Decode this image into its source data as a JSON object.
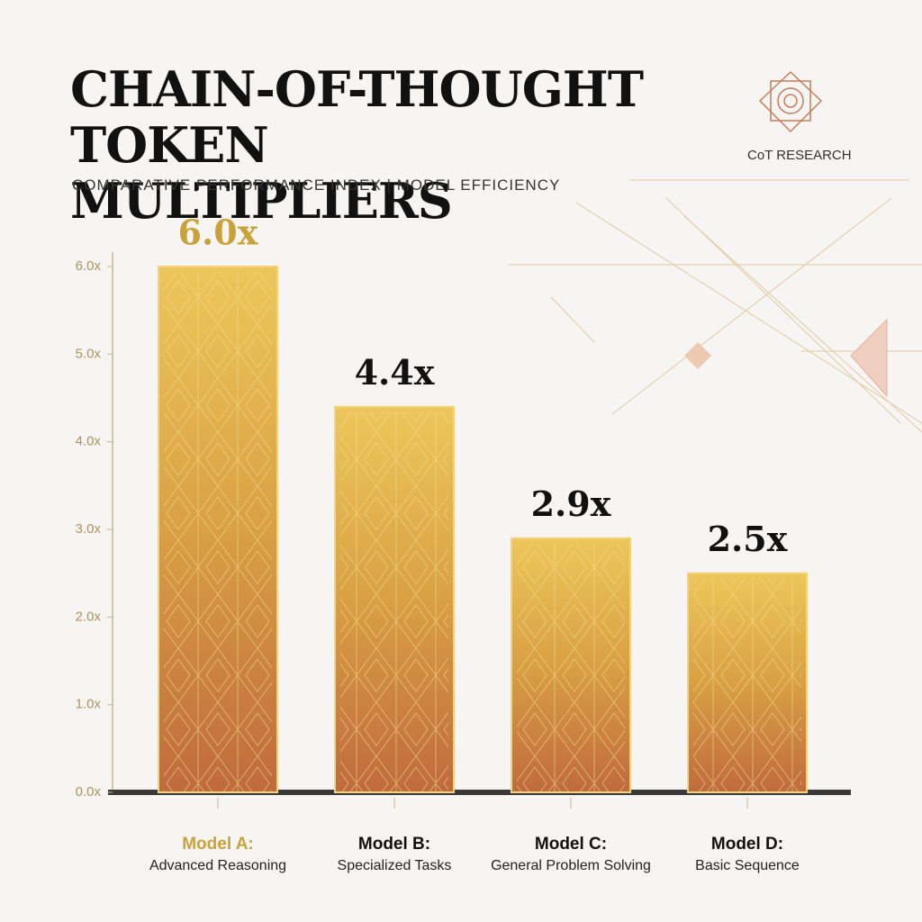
{
  "chart_data": {
    "type": "bar",
    "title": "CHAIN-OF-THOUGHT TOKEN MULTIPLIERS",
    "subtitle": "COMPARATIVE PERFORMANCE INDEX | MODEL EFFICIENCY",
    "brand": "CoT RESEARCH",
    "categories": [
      "Model A:",
      "Model B:",
      "Model C:",
      "Model D:"
    ],
    "category_descriptions": [
      "Advanced Reasoning",
      "Specialized Tasks",
      "General Problem Solving",
      "Basic Sequence"
    ],
    "values": [
      6.0,
      4.4,
      2.9,
      2.5
    ],
    "value_labels": [
      "6.0x",
      "4.4x",
      "2.9x",
      "2.5x"
    ],
    "ylim": [
      0,
      6
    ],
    "yticks": [
      {
        "value": 0,
        "label": "0.0x"
      },
      {
        "value": 1,
        "label": "1.0x"
      },
      {
        "value": 2,
        "label": "2.0x"
      },
      {
        "value": 3,
        "label": "3.0x"
      },
      {
        "value": 4,
        "label": "4.0x"
      },
      {
        "value": 5,
        "label": "5.0x"
      },
      {
        "value": 6,
        "label": "6.0x"
      }
    ],
    "highlight_color": "#c9a23c",
    "grid": false
  }
}
